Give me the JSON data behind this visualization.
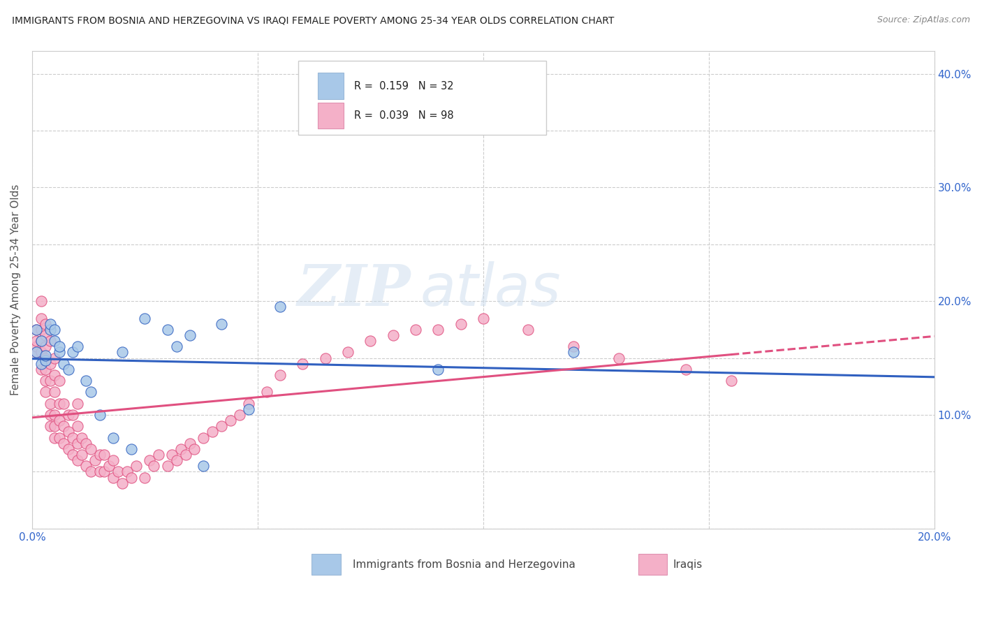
{
  "title": "IMMIGRANTS FROM BOSNIA AND HERZEGOVINA VS IRAQI FEMALE POVERTY AMONG 25-34 YEAR OLDS CORRELATION CHART",
  "source": "Source: ZipAtlas.com",
  "ylabel": "Female Poverty Among 25-34 Year Olds",
  "xlim": [
    0.0,
    0.2
  ],
  "ylim": [
    0.0,
    0.42
  ],
  "xticks": [
    0.0,
    0.05,
    0.1,
    0.15,
    0.2
  ],
  "yticks": [
    0.0,
    0.05,
    0.1,
    0.15,
    0.2,
    0.25,
    0.3,
    0.35,
    0.4
  ],
  "ytick_labels": [
    "",
    "",
    "10.0%",
    "",
    "20.0%",
    "",
    "30.0%",
    "",
    "40.0%"
  ],
  "watermark_zip": "ZIP",
  "watermark_atlas": "atlas",
  "legend_labels": [
    "Immigrants from Bosnia and Herzegovina",
    "Iraqis"
  ],
  "bosnia_R": "0.159",
  "bosnia_N": "32",
  "iraq_R": "0.039",
  "iraq_N": "98",
  "bosnia_color": "#a8c8e8",
  "iraq_color": "#f4b0c8",
  "bosnia_line_color": "#3060c0",
  "iraq_line_color": "#e05080",
  "bosnia_scatter_x": [
    0.001,
    0.001,
    0.002,
    0.002,
    0.003,
    0.003,
    0.004,
    0.004,
    0.005,
    0.005,
    0.006,
    0.006,
    0.007,
    0.008,
    0.009,
    0.01,
    0.012,
    0.013,
    0.015,
    0.018,
    0.02,
    0.022,
    0.025,
    0.03,
    0.032,
    0.035,
    0.038,
    0.042,
    0.048,
    0.055,
    0.09,
    0.12
  ],
  "bosnia_scatter_y": [
    0.155,
    0.175,
    0.145,
    0.165,
    0.148,
    0.152,
    0.175,
    0.18,
    0.165,
    0.175,
    0.155,
    0.16,
    0.145,
    0.14,
    0.155,
    0.16,
    0.13,
    0.12,
    0.1,
    0.08,
    0.155,
    0.07,
    0.185,
    0.175,
    0.16,
    0.17,
    0.055,
    0.18,
    0.105,
    0.195,
    0.14,
    0.155
  ],
  "iraq_scatter_x": [
    0.001,
    0.001,
    0.001,
    0.001,
    0.002,
    0.002,
    0.002,
    0.002,
    0.002,
    0.002,
    0.003,
    0.003,
    0.003,
    0.003,
    0.003,
    0.003,
    0.003,
    0.004,
    0.004,
    0.004,
    0.004,
    0.004,
    0.004,
    0.005,
    0.005,
    0.005,
    0.005,
    0.005,
    0.005,
    0.006,
    0.006,
    0.006,
    0.006,
    0.007,
    0.007,
    0.007,
    0.008,
    0.008,
    0.008,
    0.009,
    0.009,
    0.009,
    0.01,
    0.01,
    0.01,
    0.01,
    0.011,
    0.011,
    0.012,
    0.012,
    0.013,
    0.013,
    0.014,
    0.015,
    0.015,
    0.016,
    0.016,
    0.017,
    0.018,
    0.018,
    0.019,
    0.02,
    0.021,
    0.022,
    0.023,
    0.025,
    0.026,
    0.027,
    0.028,
    0.03,
    0.031,
    0.032,
    0.033,
    0.034,
    0.035,
    0.036,
    0.038,
    0.04,
    0.042,
    0.044,
    0.046,
    0.048,
    0.052,
    0.055,
    0.06,
    0.065,
    0.07,
    0.075,
    0.08,
    0.085,
    0.09,
    0.095,
    0.1,
    0.11,
    0.12,
    0.13,
    0.145,
    0.155
  ],
  "iraq_scatter_y": [
    0.155,
    0.16,
    0.175,
    0.165,
    0.14,
    0.155,
    0.165,
    0.175,
    0.185,
    0.2,
    0.12,
    0.13,
    0.14,
    0.15,
    0.16,
    0.17,
    0.18,
    0.09,
    0.1,
    0.11,
    0.13,
    0.145,
    0.165,
    0.08,
    0.09,
    0.1,
    0.12,
    0.135,
    0.15,
    0.08,
    0.095,
    0.11,
    0.13,
    0.075,
    0.09,
    0.11,
    0.07,
    0.085,
    0.1,
    0.065,
    0.08,
    0.1,
    0.06,
    0.075,
    0.09,
    0.11,
    0.065,
    0.08,
    0.055,
    0.075,
    0.05,
    0.07,
    0.06,
    0.05,
    0.065,
    0.05,
    0.065,
    0.055,
    0.045,
    0.06,
    0.05,
    0.04,
    0.05,
    0.045,
    0.055,
    0.045,
    0.06,
    0.055,
    0.065,
    0.055,
    0.065,
    0.06,
    0.07,
    0.065,
    0.075,
    0.07,
    0.08,
    0.085,
    0.09,
    0.095,
    0.1,
    0.11,
    0.12,
    0.135,
    0.145,
    0.15,
    0.155,
    0.165,
    0.17,
    0.175,
    0.175,
    0.18,
    0.185,
    0.175,
    0.16,
    0.15,
    0.14,
    0.13
  ]
}
